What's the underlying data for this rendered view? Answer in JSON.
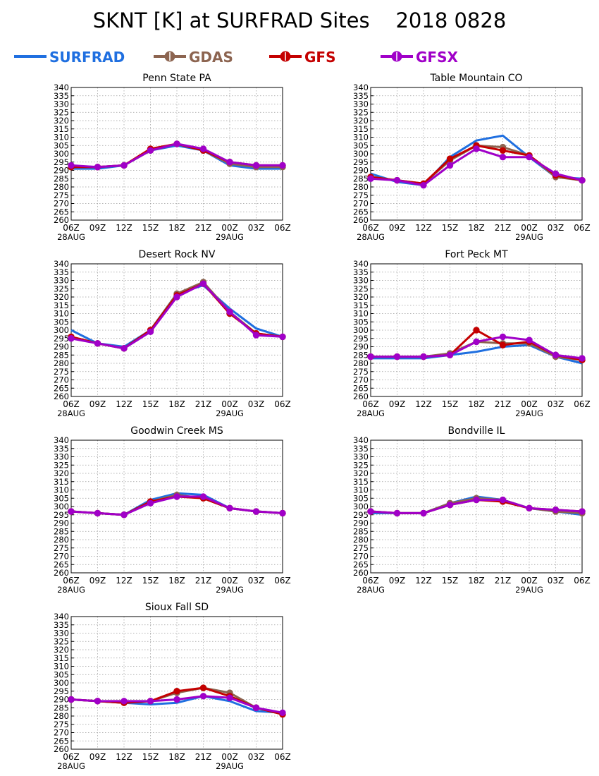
{
  "title": "SKNT [K] at SURFRAD Sites    2018 0828",
  "series_styles": [
    {
      "name": "SURFRAD",
      "color": "#1f6fe0",
      "marker": "none"
    },
    {
      "name": "GDAS",
      "color": "#8c6450",
      "marker": "circle"
    },
    {
      "name": "GFS",
      "color": "#c40000",
      "marker": "circle"
    },
    {
      "name": "GFSX",
      "color": "#a000c8",
      "marker": "circle"
    }
  ],
  "chart_data": [
    {
      "type": "line",
      "title": "Penn State PA",
      "x_ticks": [
        "06Z",
        "09Z",
        "12Z",
        "15Z",
        "18Z",
        "21Z",
        "00Z",
        "03Z",
        "06Z"
      ],
      "date_labels": [
        "28AUG",
        "29AUG"
      ],
      "ylim": [
        260,
        340
      ],
      "y_ticks": [
        260,
        265,
        270,
        275,
        280,
        285,
        290,
        295,
        300,
        305,
        310,
        315,
        320,
        325,
        330,
        335,
        340
      ],
      "grid": true,
      "series": [
        {
          "name": "SURFRAD",
          "x": [
            0,
            3,
            6,
            9,
            12,
            15,
            18,
            21,
            24
          ],
          "values": [
            291,
            291,
            293,
            302,
            305,
            302,
            293,
            291,
            291
          ]
        },
        {
          "name": "GDAS",
          "x": [
            0,
            3,
            6,
            9,
            12,
            15,
            18,
            21,
            24
          ],
          "values": [
            292,
            292,
            293,
            302,
            306,
            302,
            294,
            292,
            292
          ]
        },
        {
          "name": "GFS",
          "x": [
            0,
            3,
            6,
            9,
            12,
            15,
            18,
            21,
            24
          ],
          "values": [
            292,
            292,
            293,
            303,
            306,
            302,
            295,
            293,
            293
          ]
        },
        {
          "name": "GFSX",
          "x": [
            0,
            3,
            6,
            9,
            12,
            15,
            18,
            21,
            24
          ],
          "values": [
            293,
            292,
            293,
            302,
            306,
            303,
            295,
            293,
            293
          ]
        }
      ]
    },
    {
      "type": "line",
      "title": "Table Mountain CO",
      "x_ticks": [
        "06Z",
        "09Z",
        "12Z",
        "15Z",
        "18Z",
        "21Z",
        "00Z",
        "03Z",
        "06Z"
      ],
      "date_labels": [
        "28AUG",
        "29AUG"
      ],
      "ylim": [
        260,
        340
      ],
      "y_ticks": [
        260,
        265,
        270,
        275,
        280,
        285,
        290,
        295,
        300,
        305,
        310,
        315,
        320,
        325,
        330,
        335,
        340
      ],
      "grid": true,
      "series": [
        {
          "name": "SURFRAD",
          "x": [
            0,
            3,
            6,
            9,
            12,
            15,
            18,
            21,
            24
          ],
          "values": [
            288,
            283,
            281,
            298,
            308,
            311,
            298,
            286,
            285
          ]
        },
        {
          "name": "GDAS",
          "x": [
            0,
            3,
            6,
            9,
            12,
            15,
            18,
            21,
            24
          ],
          "values": [
            286,
            284,
            282,
            296,
            305,
            304,
            299,
            286,
            284
          ]
        },
        {
          "name": "GFS",
          "x": [
            0,
            3,
            6,
            9,
            12,
            15,
            18,
            21,
            24
          ],
          "values": [
            286,
            284,
            282,
            297,
            305,
            302,
            299,
            287,
            284
          ]
        },
        {
          "name": "GFSX",
          "x": [
            0,
            3,
            6,
            9,
            12,
            15,
            18,
            21,
            24
          ],
          "values": [
            285,
            284,
            281,
            293,
            303,
            298,
            298,
            288,
            284
          ]
        }
      ]
    },
    {
      "type": "line",
      "title": "Desert Rock NV",
      "x_ticks": [
        "06Z",
        "09Z",
        "12Z",
        "15Z",
        "18Z",
        "21Z",
        "00Z",
        "03Z",
        "06Z"
      ],
      "date_labels": [
        "28AUG",
        "29AUG"
      ],
      "ylim": [
        260,
        340
      ],
      "y_ticks": [
        260,
        265,
        270,
        275,
        280,
        285,
        290,
        295,
        300,
        305,
        310,
        315,
        320,
        325,
        330,
        335,
        340
      ],
      "grid": true,
      "series": [
        {
          "name": "SURFRAD",
          "x": [
            0,
            3,
            6,
            9,
            12,
            15,
            18,
            21,
            24
          ],
          "values": [
            300,
            292,
            290,
            300,
            322,
            327,
            313,
            301,
            296
          ]
        },
        {
          "name": "GDAS",
          "x": [
            0,
            3,
            6,
            9,
            12,
            15,
            18,
            21,
            24
          ],
          "values": [
            296,
            292,
            289,
            300,
            322,
            329,
            311,
            298,
            296
          ]
        },
        {
          "name": "GFS",
          "x": [
            0,
            3,
            6,
            9,
            12,
            15,
            18,
            21,
            24
          ],
          "values": [
            296,
            292,
            289,
            300,
            321,
            328,
            310,
            298,
            296
          ]
        },
        {
          "name": "GFSX",
          "x": [
            0,
            3,
            6,
            9,
            12,
            15,
            18,
            21,
            24
          ],
          "values": [
            295,
            292,
            289,
            299,
            320,
            328,
            311,
            297,
            296
          ]
        }
      ]
    },
    {
      "type": "line",
      "title": "Fort Peck MT",
      "x_ticks": [
        "06Z",
        "09Z",
        "12Z",
        "15Z",
        "18Z",
        "21Z",
        "00Z",
        "03Z",
        "06Z"
      ],
      "date_labels": [
        "28AUG",
        "29AUG"
      ],
      "ylim": [
        260,
        340
      ],
      "y_ticks": [
        260,
        265,
        270,
        275,
        280,
        285,
        290,
        295,
        300,
        305,
        310,
        315,
        320,
        325,
        330,
        335,
        340
      ],
      "grid": true,
      "series": [
        {
          "name": "SURFRAD",
          "x": [
            0,
            3,
            6,
            9,
            12,
            15,
            18,
            21,
            24
          ],
          "values": [
            283,
            283,
            283,
            285,
            287,
            290,
            291,
            284,
            280
          ]
        },
        {
          "name": "GDAS",
          "x": [
            0,
            3,
            6,
            9,
            12,
            15,
            18,
            21,
            24
          ],
          "values": [
            284,
            284,
            284,
            286,
            293,
            292,
            292,
            284,
            282
          ]
        },
        {
          "name": "GFS",
          "x": [
            0,
            3,
            6,
            9,
            12,
            15,
            18,
            21,
            24
          ],
          "values": [
            284,
            284,
            284,
            285,
            300,
            291,
            293,
            285,
            282
          ]
        },
        {
          "name": "GFSX",
          "x": [
            0,
            3,
            6,
            9,
            12,
            15,
            18,
            21,
            24
          ],
          "values": [
            284,
            284,
            284,
            285,
            293,
            296,
            294,
            285,
            283
          ]
        }
      ]
    },
    {
      "type": "line",
      "title": "Goodwin Creek MS",
      "x_ticks": [
        "06Z",
        "09Z",
        "12Z",
        "15Z",
        "18Z",
        "21Z",
        "00Z",
        "03Z",
        "06Z"
      ],
      "date_labels": [
        "28AUG",
        "29AUG"
      ],
      "ylim": [
        260,
        340
      ],
      "y_ticks": [
        260,
        265,
        270,
        275,
        280,
        285,
        290,
        295,
        300,
        305,
        310,
        315,
        320,
        325,
        330,
        335,
        340
      ],
      "grid": true,
      "series": [
        {
          "name": "SURFRAD",
          "x": [
            0,
            3,
            6,
            9,
            12,
            15,
            18,
            21,
            24
          ],
          "values": [
            297,
            296,
            295,
            304,
            308,
            307,
            299,
            297,
            296
          ]
        },
        {
          "name": "GDAS",
          "x": [
            0,
            3,
            6,
            9,
            12,
            15,
            18,
            21,
            24
          ],
          "values": [
            297,
            296,
            295,
            303,
            307,
            305,
            299,
            297,
            296
          ]
        },
        {
          "name": "GFS",
          "x": [
            0,
            3,
            6,
            9,
            12,
            15,
            18,
            21,
            24
          ],
          "values": [
            297,
            296,
            295,
            303,
            306,
            305,
            299,
            297,
            296
          ]
        },
        {
          "name": "GFSX",
          "x": [
            0,
            3,
            6,
            9,
            12,
            15,
            18,
            21,
            24
          ],
          "values": [
            297,
            296,
            295,
            302,
            306,
            306,
            299,
            297,
            296
          ]
        }
      ]
    },
    {
      "type": "line",
      "title": "Bondville IL",
      "x_ticks": [
        "06Z",
        "09Z",
        "12Z",
        "15Z",
        "18Z",
        "21Z",
        "00Z",
        "03Z",
        "06Z"
      ],
      "date_labels": [
        "28AUG",
        "29AUG"
      ],
      "ylim": [
        260,
        340
      ],
      "y_ticks": [
        260,
        265,
        270,
        275,
        280,
        285,
        290,
        295,
        300,
        305,
        310,
        315,
        320,
        325,
        330,
        335,
        340
      ],
      "grid": true,
      "series": [
        {
          "name": "SURFRAD",
          "x": [
            0,
            3,
            6,
            9,
            12,
            15,
            18,
            21,
            24
          ],
          "values": [
            296,
            296,
            296,
            302,
            306,
            304,
            299,
            297,
            295
          ]
        },
        {
          "name": "GDAS",
          "x": [
            0,
            3,
            6,
            9,
            12,
            15,
            18,
            21,
            24
          ],
          "values": [
            297,
            296,
            296,
            302,
            305,
            304,
            299,
            297,
            296
          ]
        },
        {
          "name": "GFS",
          "x": [
            0,
            3,
            6,
            9,
            12,
            15,
            18,
            21,
            24
          ],
          "values": [
            297,
            296,
            296,
            301,
            304,
            303,
            299,
            298,
            297
          ]
        },
        {
          "name": "GFSX",
          "x": [
            0,
            3,
            6,
            9,
            12,
            15,
            18,
            21,
            24
          ],
          "values": [
            297,
            296,
            296,
            301,
            304,
            304,
            299,
            298,
            297
          ]
        }
      ]
    },
    {
      "type": "line",
      "title": "Sioux Fall SD",
      "x_ticks": [
        "06Z",
        "09Z",
        "12Z",
        "15Z",
        "18Z",
        "21Z",
        "00Z",
        "03Z",
        "06Z"
      ],
      "date_labels": [
        "28AUG",
        "29AUG"
      ],
      "ylim": [
        260,
        340
      ],
      "y_ticks": [
        260,
        265,
        270,
        275,
        280,
        285,
        290,
        295,
        300,
        305,
        310,
        315,
        320,
        325,
        330,
        335,
        340
      ],
      "grid": true,
      "series": [
        {
          "name": "SURFRAD",
          "x": [
            0,
            3,
            6,
            9,
            12,
            15,
            18,
            21,
            24
          ],
          "values": [
            290,
            289,
            288,
            287,
            288,
            292,
            289,
            283,
            282
          ]
        },
        {
          "name": "GDAS",
          "x": [
            0,
            3,
            6,
            9,
            12,
            15,
            18,
            21,
            24
          ],
          "values": [
            290,
            289,
            288,
            289,
            294,
            297,
            294,
            285,
            281
          ]
        },
        {
          "name": "GFS",
          "x": [
            0,
            3,
            6,
            9,
            12,
            15,
            18,
            21,
            24
          ],
          "values": [
            290,
            289,
            288,
            289,
            295,
            297,
            292,
            285,
            281
          ]
        },
        {
          "name": "GFSX",
          "x": [
            0,
            3,
            6,
            9,
            12,
            15,
            18,
            21,
            24
          ],
          "values": [
            290,
            289,
            289,
            289,
            290,
            292,
            291,
            285,
            282
          ]
        }
      ]
    }
  ]
}
